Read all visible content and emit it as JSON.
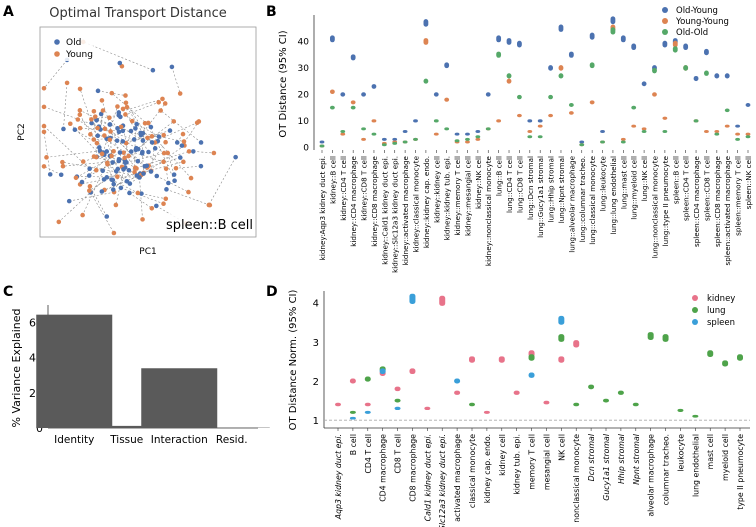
{
  "colors": {
    "old_young": "#4c72b0",
    "young_young": "#dd8452",
    "old_old": "#55a868",
    "kidney": "#e8738a",
    "lung": "#4ea34a",
    "spleen": "#3a9fd9",
    "bar": "#5a5a5a",
    "axis": "#333333"
  },
  "chart_data": [
    {
      "panel": "A",
      "type": "scatter",
      "title": "Optimal Transport Distance",
      "xlabel": "PC1",
      "ylabel": "PC2",
      "annotation": "spleen::B cell",
      "legend": [
        "Old",
        "Young"
      ],
      "legend_position": "top-left",
      "note": "paired points connected by dashed lines"
    },
    {
      "panel": "B",
      "type": "scatter",
      "ylabel": "OT Distance (95% CI)",
      "ylim": [
        -1,
        50
      ],
      "yticks": [
        0,
        10,
        20,
        30,
        40
      ],
      "legend_position": "top-right",
      "series_names": [
        "Old-Young",
        "Young-Young",
        "Old-Old"
      ],
      "categories": [
        "kidney:Aqp3 kidney duct epi.",
        "kidney::B cell",
        "kidney::CD4 T cell",
        "kidney::CD4 macrophage",
        "kidney::CD8 T cell",
        "kidney::CD8 macrophage",
        "kidney::Cald1 kidney duct epi.",
        "kidney::Slc12a3 kidney duct epi.",
        "kidney::activated macrophage",
        "kidney::classical monocyte",
        "kidney::kidney cap. endo.",
        "kidney::kidney cell",
        "kidney::kidney tub. epi.",
        "kidney::memory T cell",
        "kidney::mesangial cell",
        "kidney::NK cell",
        "kidney::nonclassical monocyte",
        "lung::B cell",
        "lung::CD4 T cell",
        "lung::CD8 T cell",
        "lung::Dcn stromal",
        "lung::Gucy1a1 stromal",
        "lung::Hhip stromal",
        "lung::Npnt stromal",
        "lung::alveolar macrophage",
        "lung::columnar tracheo.",
        "lung::classical monocyte",
        "lung::leukocyte",
        "lung::lung endothelial",
        "lung::mast cell",
        "lung::myeloid cell",
        "lung::NK cell",
        "lung::nonclassical monocyte",
        "lung::type II pneumocyte",
        "spleen::B cell",
        "spleen::CD4 T cell",
        "spleen::CD4 macrophage",
        "spleen::CD8 T cell",
        "spleen::CD8 macrophage",
        "spleen::activated macrophage",
        "spleen::memory T cell",
        "spleen::NK cell"
      ],
      "old_young": [
        2,
        41,
        20,
        34,
        20,
        23,
        3,
        3,
        6,
        10,
        47,
        20,
        31,
        5,
        5,
        6,
        20,
        41,
        40,
        39,
        10,
        10,
        30,
        45,
        35,
        2,
        42,
        6,
        48,
        41,
        38,
        24,
        30,
        39,
        40,
        38,
        26,
        36,
        27,
        27,
        8,
        16
      ],
      "young_young": [
        0.5,
        21,
        5,
        17,
        3,
        10,
        1.5,
        2,
        2,
        3,
        40,
        5,
        18,
        2,
        2,
        3,
        7,
        10,
        25,
        12,
        6,
        8,
        12,
        30,
        13,
        1,
        17,
        2,
        45,
        3,
        8,
        7,
        20,
        11,
        39,
        30,
        10,
        6,
        6,
        8,
        5,
        5
      ],
      "old_old": [
        0.5,
        15,
        6,
        15,
        7,
        5,
        1,
        1.5,
        2,
        3,
        25,
        10,
        7,
        2.5,
        3,
        4,
        7,
        35,
        27,
        19,
        4,
        4,
        19,
        27,
        16,
        1,
        31,
        2,
        44,
        2,
        15,
        6,
        29,
        6,
        37,
        30,
        10,
        28,
        5,
        14,
        3,
        4
      ]
    },
    {
      "panel": "C",
      "type": "bar",
      "ylabel": "% Variance Explained",
      "categories": [
        "Identity",
        "Tissue",
        "Interaction",
        "Resid."
      ],
      "values": [
        64.5,
        1.2,
        34.0,
        0.2
      ],
      "ylim": [
        0,
        70
      ],
      "yticks": [
        0,
        20,
        40,
        60
      ]
    },
    {
      "panel": "D",
      "type": "scatter",
      "ylabel": "OT Distance Norm. (95% CI)",
      "ylim": [
        0.8,
        4.3
      ],
      "yticks": [
        1,
        2,
        3,
        4
      ],
      "reference_line": 1,
      "legend_position": "top-right",
      "series_names": [
        "kidney",
        "lung",
        "spleen"
      ],
      "categories": [
        "Aqp3 kidney duct epi.",
        "B cell",
        "CD4 T cell",
        "CD4 macrophage",
        "CD8 T cell",
        "CD8 macrophage",
        "Cald1 kidney duct epi.",
        "Slc12a3 kidney duct epi.",
        "activated macrophage",
        "classical monocyte",
        "kidney cap. endo.",
        "kidney cell",
        "kidney tub. epi.",
        "memory T cell",
        "mesangial cell",
        "NK cell",
        "nonclassical monocyte",
        "Dcn stromal",
        "Gucy1a1 stromal",
        "Hhip stromal",
        "Npnt stromal",
        "alveolar macrophage",
        "columnar tracheo.",
        "leukocyte",
        "lung endothelial",
        "mast cell",
        "myeloid cell",
        "type II pneumocyte"
      ],
      "italic_categories": [
        "Aqp3 kidney duct epi.",
        "Cald1 kidney duct epi.",
        "Slc12a3 kidney duct epi.",
        "Dcn stromal",
        "Gucy1a1 stromal",
        "Hhip stromal",
        "Npnt stromal"
      ],
      "kidney": [
        1.4,
        2.0,
        1.4,
        2.2,
        1.8,
        2.25,
        1.3,
        4.05,
        1.7,
        2.55,
        1.2,
        2.55,
        1.7,
        2.7,
        1.45,
        2.55,
        2.95,
        null,
        null,
        null,
        null,
        null,
        null,
        null,
        null,
        null,
        null,
        null
      ],
      "lung": [
        null,
        1.2,
        2.05,
        2.3,
        1.5,
        null,
        null,
        null,
        null,
        1.4,
        null,
        null,
        null,
        2.6,
        null,
        3.1,
        1.4,
        1.85,
        1.5,
        1.7,
        1.4,
        3.15,
        3.1,
        1.25,
        1.1,
        2.7,
        2.45,
        2.6
      ],
      "spleen": [
        null,
        1.05,
        1.2,
        2.25,
        1.3,
        4.1,
        null,
        null,
        2.0,
        null,
        null,
        null,
        null,
        2.15,
        null,
        3.55,
        null,
        null,
        null,
        null,
        null,
        null,
        null,
        null,
        null,
        null,
        null,
        null
      ]
    }
  ]
}
